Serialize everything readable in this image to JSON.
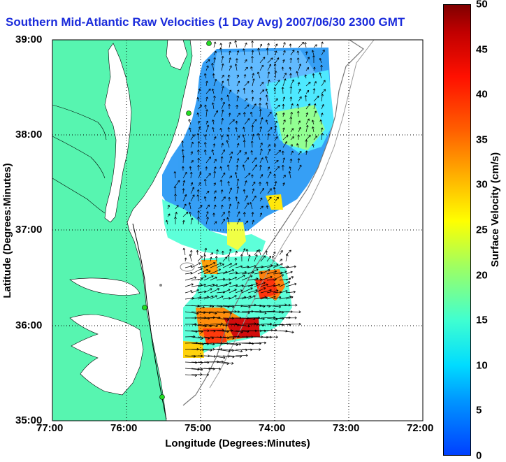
{
  "title": "Southern Mid-Atlantic Raw Velocities (1 Day Avg) 2007/06/30 2300 GMT",
  "xlabel": "Longitude (Degrees:Minutes)",
  "ylabel": "Latitude (Degrees:Minutes)",
  "x_ticks": [
    "77:00",
    "76:00",
    "75:00",
    "74:00",
    "73:00",
    "72:00"
  ],
  "y_ticks": [
    "39:00",
    "38:00",
    "37:00",
    "36:00",
    "35:00"
  ],
  "colorbar": {
    "label": "Surface Velocity (cm/s)",
    "ticks": [
      "50",
      "45",
      "40",
      "35",
      "30",
      "25",
      "20",
      "15",
      "10",
      "5",
      "0"
    ],
    "min": 0,
    "max": 50
  },
  "colors": {
    "land": "#57f5b0",
    "title": "#1a2bdb",
    "station": "#22dd22"
  },
  "map_extent": {
    "lon": [
      -77,
      -72
    ],
    "lat": [
      35,
      39
    ]
  }
}
